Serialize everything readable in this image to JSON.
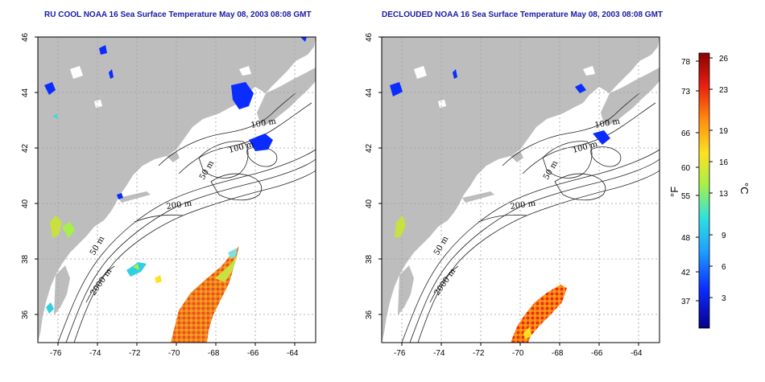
{
  "panels": [
    {
      "title": "RU COOL NOAA 16 Sea Surface Temperature May 08, 2003 08:08 GMT",
      "x_ticks": [
        "-76",
        "-74",
        "-72",
        "-70",
        "-68",
        "-66",
        "-64"
      ],
      "y_ticks": [
        "36",
        "38",
        "40",
        "42",
        "44",
        "46"
      ],
      "contour_labels": [
        "100 m",
        "100 m",
        "50 m",
        "200 m",
        "50 m",
        "2000 m"
      ]
    },
    {
      "title": "DECLOUDED NOAA 16 Sea Surface Temperature May 08, 2003 08:08 GMT",
      "x_ticks": [
        "-76",
        "-74",
        "-72",
        "-70",
        "-68",
        "-66",
        "-64"
      ],
      "y_ticks": [
        "36",
        "38",
        "40",
        "42",
        "44",
        "46"
      ],
      "contour_labels": [
        "100 m",
        "100 m",
        "50 m",
        "200 m",
        "50 m",
        "2000 m"
      ]
    }
  ],
  "colorbar": {
    "unit_left": "°F",
    "unit_right": "°C",
    "fahrenheit_ticks": [
      "78",
      "73",
      "66",
      "60",
      "55",
      "48",
      "42",
      "37"
    ],
    "celsius_ticks": [
      "26",
      "23",
      "19",
      "16",
      "13",
      "9",
      "6",
      "3"
    ],
    "colors": [
      "#08008a",
      "#0a2cff",
      "#1f9fff",
      "#2fe0e0",
      "#a6f04a",
      "#ffe020",
      "#ff8a10",
      "#e82010",
      "#8a0000"
    ]
  },
  "map": {
    "lon_range": [
      -77,
      -63
    ],
    "lat_range": [
      35,
      46
    ],
    "land_color": "#bdbdbd",
    "ocean_color": "#ffffff"
  }
}
